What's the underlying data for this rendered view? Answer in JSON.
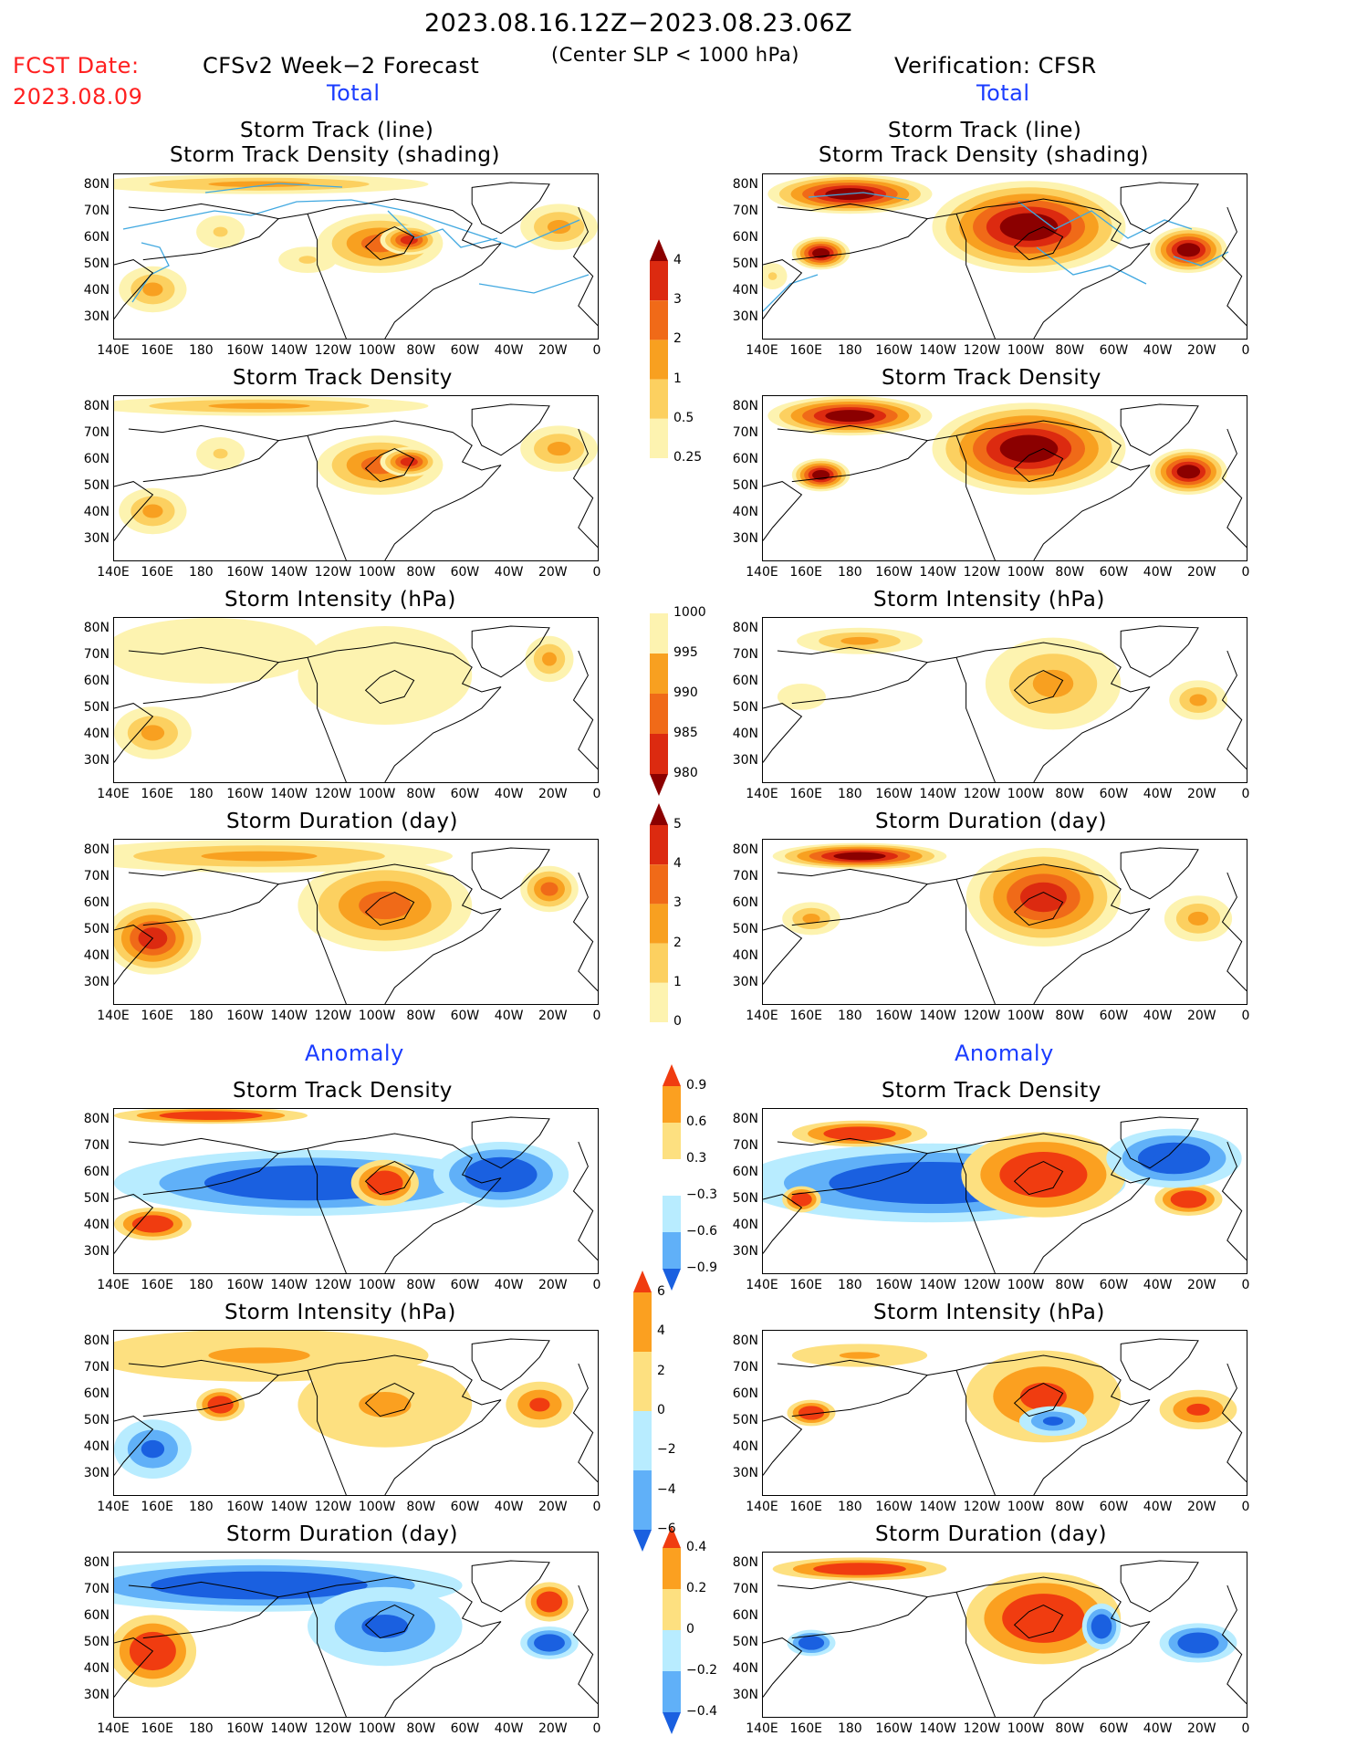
{
  "header": {
    "period": "2023.08.16.12Z−2023.08.23.06Z",
    "criterion": "(Center SLP < 1000 hPa)",
    "fcst_date_label": "FCST Date:",
    "fcst_date": "2023.08.09",
    "model_label": "CFSv2 Week−2 Forecast",
    "verification_label": "Verification: CFSR"
  },
  "sections": {
    "total_left": "Total",
    "total_right": "Total",
    "anomaly_left": "Anomaly",
    "anomaly_right": "Anomaly"
  },
  "panel_titles": {
    "track_line": "Storm Track (line)",
    "track_shading": "Storm Track Density (shading)",
    "density": "Storm Track Density",
    "intensity": "Storm Intensity (hPa)",
    "duration": "Storm Duration (day)"
  },
  "axes": {
    "lat_labels": [
      "80N",
      "70N",
      "60N",
      "50N",
      "40N",
      "30N"
    ],
    "lon_labels": [
      "140E",
      "160E",
      "180",
      "160W",
      "140W",
      "120W",
      "100W",
      "80W",
      "60W",
      "40W",
      "20W",
      "0"
    ]
  },
  "colorbars": {
    "density_total": {
      "labels": [
        "4",
        "3",
        "2",
        "1",
        "0.5",
        "0.25"
      ],
      "colors": [
        "#8b0000",
        "#dc2a10",
        "#f06a18",
        "#f8a020",
        "#fcd060",
        "#fdf3b0"
      ]
    },
    "intensity_total": {
      "labels": [
        "1000",
        "995",
        "990",
        "985",
        "980"
      ],
      "colors": [
        "#fdf3b0",
        "#f8a020",
        "#f06a18",
        "#dc2a10",
        "#8b0000"
      ]
    },
    "duration_total": {
      "labels": [
        "5",
        "4",
        "3",
        "2",
        "1",
        "0"
      ],
      "colors": [
        "#8b0000",
        "#dc2a10",
        "#f06a18",
        "#f8a020",
        "#fcd060",
        "#fdf3b0"
      ]
    },
    "density_anom": {
      "labels": [
        "0.9",
        "0.6",
        "0.3",
        "−0.3",
        "−0.6",
        "−0.9"
      ],
      "colors": [
        "#f03c10",
        "#fba020",
        "#fde080",
        "#ffffff",
        "#b8ecff",
        "#60b0f8",
        "#1a60e0"
      ]
    },
    "intensity_anom": {
      "labels": [
        "6",
        "4",
        "2",
        "0",
        "−2",
        "−4",
        "−6"
      ],
      "colors": [
        "#f03c10",
        "#fba020",
        "#fde080",
        "#b8ecff",
        "#60b0f8",
        "#1a60e0"
      ]
    },
    "duration_anom": {
      "labels": [
        "0.4",
        "0.2",
        "0",
        "−0.2",
        "−0.4"
      ],
      "colors": [
        "#f03c10",
        "#fba020",
        "#fde080",
        "#b8ecff",
        "#60b0f8",
        "#1a60e0"
      ]
    }
  },
  "palette": {
    "track_line": "#40a8e0",
    "warm": [
      "#fdf3b0",
      "#fcd060",
      "#f8a020",
      "#f06a18",
      "#dc2a10",
      "#8b0000"
    ],
    "anomaly_pos": [
      "#fde080",
      "#fba020",
      "#f03c10"
    ],
    "anomaly_neg": [
      "#b8ecff",
      "#60b0f8",
      "#1a60e0"
    ]
  }
}
